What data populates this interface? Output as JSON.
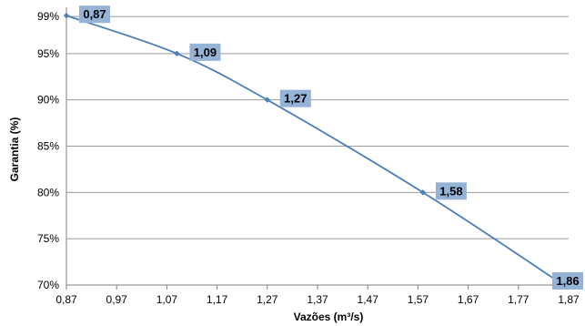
{
  "chart_data": {
    "type": "line",
    "title": "",
    "xlabel": "Vazões (m³/s)",
    "ylabel": "Garantia (%)",
    "xlim": [
      0.87,
      1.87
    ],
    "ylim": [
      70,
      100
    ],
    "x_ticks": [
      "0,87",
      "0,97",
      "1,07",
      "1,17",
      "1,27",
      "1,37",
      "1,47",
      "1,57",
      "1,67",
      "1,77",
      "1,87"
    ],
    "y_ticks": [
      "70%",
      "75%",
      "80%",
      "85%",
      "90%",
      "95%",
      "99%"
    ],
    "grid": "horizontal",
    "series": [
      {
        "color": "#4a7ebb",
        "x": [
          0.87,
          1.09,
          1.27,
          1.58,
          1.86
        ],
        "y": [
          99.1,
          95,
          90,
          80,
          70
        ],
        "labels": [
          "0,87",
          "1,09",
          "1,27",
          "1,58",
          "1,86"
        ]
      }
    ],
    "label_box_color": "#95b3d7"
  }
}
